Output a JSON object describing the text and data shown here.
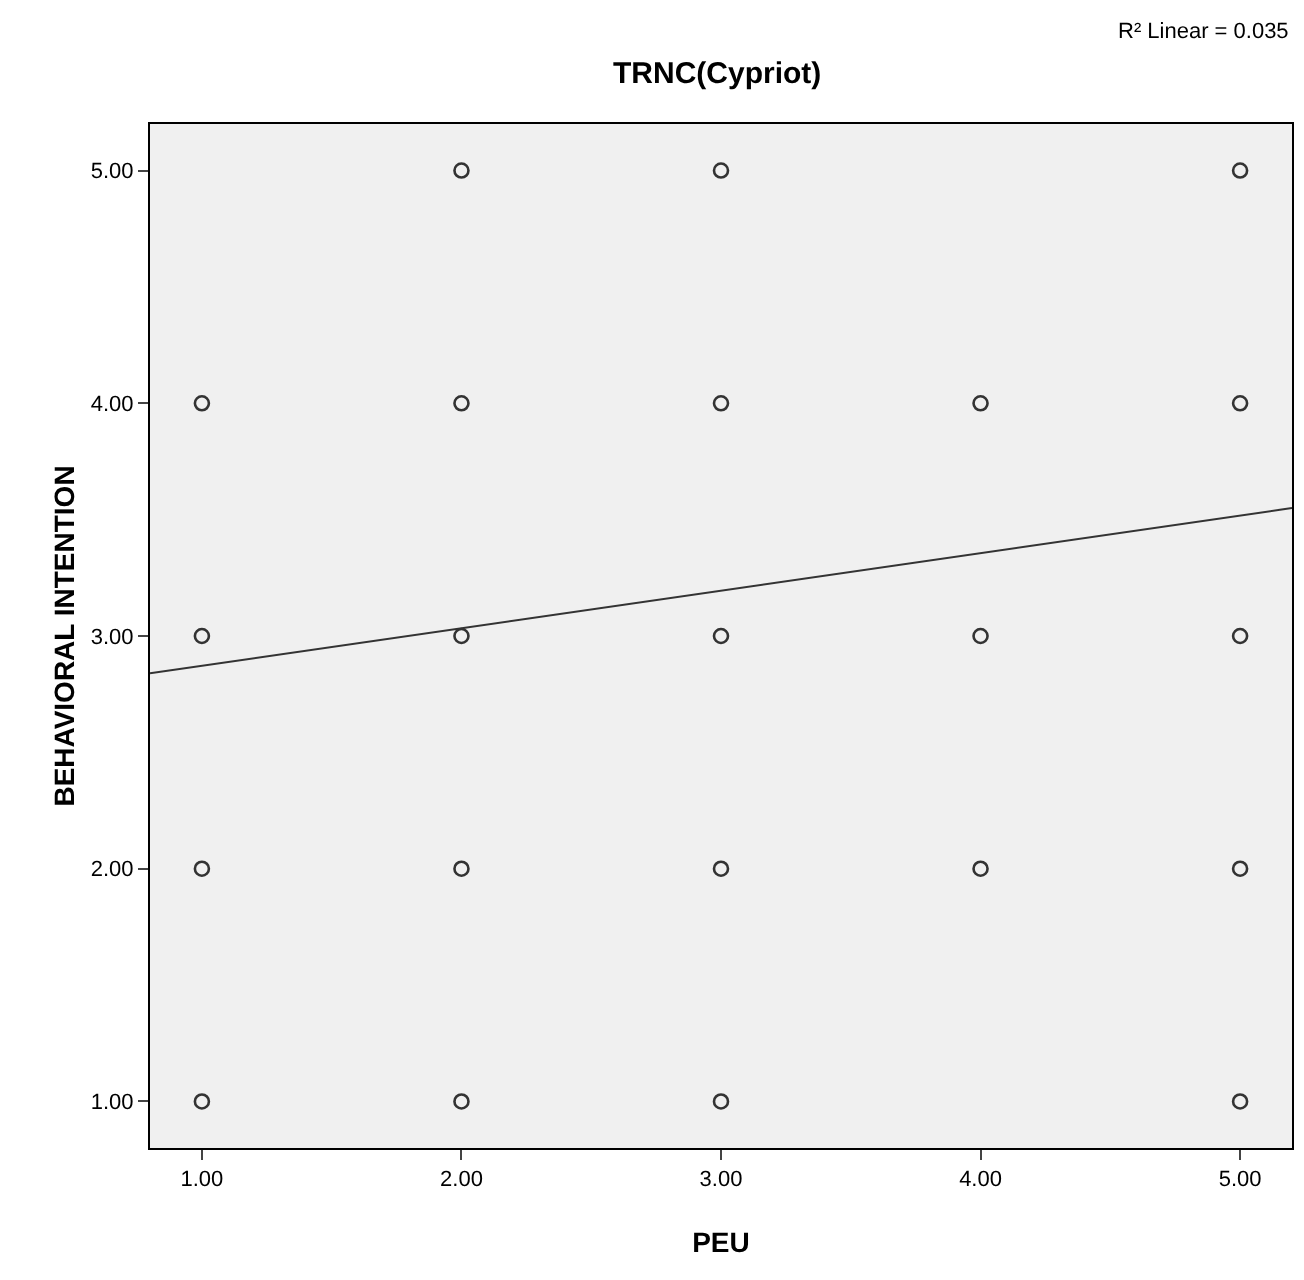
{
  "chart_data": {
    "type": "scatter",
    "title": "TRNC(Cypriot)",
    "xlabel": "PEU",
    "ylabel": "BEHAVIORAL INTENTION",
    "annotations": [
      "R² Linear = 0.035"
    ],
    "series": [
      {
        "color": "#333333",
        "x": [
          1,
          1,
          1,
          1,
          2,
          2,
          2,
          2,
          2,
          3,
          3,
          3,
          3,
          3,
          4,
          4,
          4,
          5,
          5,
          5,
          5,
          5
        ],
        "values": [
          4,
          3,
          2,
          1,
          5,
          4,
          3,
          2,
          1,
          5,
          4,
          3,
          2,
          1,
          4,
          3,
          2,
          5,
          4,
          3,
          2,
          1
        ]
      },
      {
        "type": "line",
        "color": "#333333",
        "x": [
          0.8,
          5.2
        ],
        "values": [
          2.84,
          3.55
        ],
        "marker": "none"
      }
    ],
    "marker": "circle",
    "grid": false,
    "xlim": [
      0.8,
      5.2
    ],
    "ylim": [
      0.8,
      5.2
    ],
    "xticks": [
      {
        "value": 1,
        "label": "1.00"
      },
      {
        "value": 2,
        "label": "2.00"
      },
      {
        "value": 3,
        "label": "3.00"
      },
      {
        "value": 4,
        "label": "4.00"
      },
      {
        "value": 5,
        "label": "5.00"
      }
    ],
    "yticks": [
      {
        "value": 1,
        "label": "1.00"
      },
      {
        "value": 2,
        "label": "2.00"
      },
      {
        "value": 3,
        "label": "3.00"
      },
      {
        "value": 4,
        "label": "4.00"
      },
      {
        "value": 5,
        "label": "5.00"
      }
    ]
  }
}
